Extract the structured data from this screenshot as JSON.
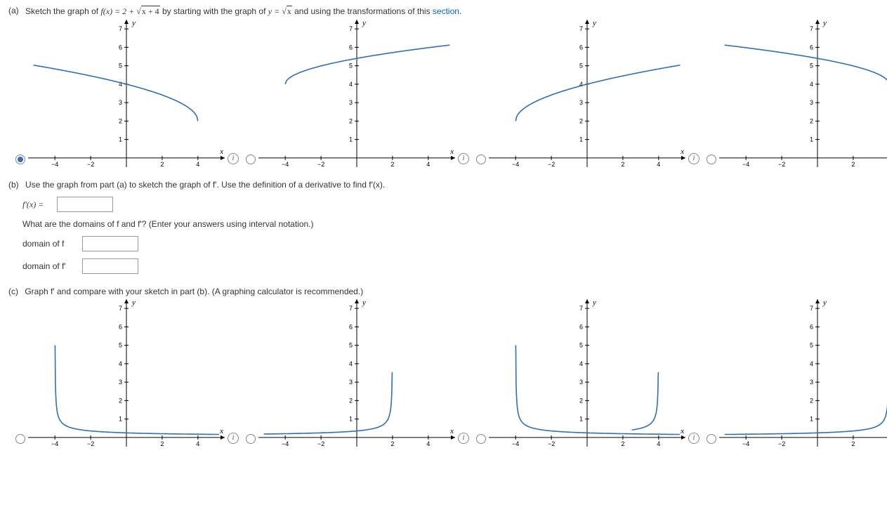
{
  "partA": {
    "label": "(a)",
    "prompt_before": "Sketch the graph of ",
    "func_lhs": "f(x) = 2 + ",
    "sqrt_arg": "x + 4",
    "prompt_mid": " by starting with the graph of ",
    "base_lhs": "y = ",
    "base_sqrt_arg": "x",
    "prompt_after": " and using the transformations of this ",
    "link_text": "section",
    "prompt_end": ".",
    "axis": {
      "xlabel": "x",
      "ylabel": "y",
      "xticks": [
        -4,
        -2,
        2,
        4
      ],
      "yticks": [
        1,
        2,
        3,
        4,
        5,
        6,
        7
      ],
      "xlim": [
        -5.5,
        5.5
      ],
      "ylim": [
        -0.5,
        7.5
      ],
      "color": "#000",
      "curve_color": "#2f6fb3",
      "curve_width": 1.6
    },
    "options": [
      {
        "selected": true,
        "curve": "neg_sqrt_left"
      },
      {
        "selected": false,
        "curve": "pos_sqrt_right"
      },
      {
        "selected": false,
        "curve": "pos_sqrt_left"
      },
      {
        "selected": false,
        "curve": "neg_sqrt_right"
      }
    ]
  },
  "partB": {
    "label": "(b)",
    "prompt": "Use the graph from part (a) to sketch the graph of f'. Use the definition of a derivative to find f'(x).",
    "fprime_label": "f'(x) =",
    "fprime_value": "",
    "domain_prompt": "What are the domains of f and f'? (Enter your answers using interval notation.)",
    "domain_f_label": "domain of f",
    "domain_f_value": "",
    "domain_fp_label": "domain of f'",
    "domain_fp_value": ""
  },
  "partC": {
    "label": "(c)",
    "prompt": "Graph f' and compare with your sketch in part (b). (A graphing calculator is recommended.)",
    "axis": {
      "xlabel": "x",
      "ylabel": "y",
      "xticks": [
        -4,
        -2,
        2,
        4
      ],
      "yticks": [
        1,
        2,
        3,
        4,
        5,
        6,
        7
      ],
      "xlim": [
        -5.5,
        5.5
      ],
      "ylim": [
        -0.5,
        7.5
      ],
      "color": "#000",
      "curve_color": "#2f6fb3",
      "curve_width": 1.6
    },
    "options": [
      {
        "selected": false,
        "curve": "deriv_left_up"
      },
      {
        "selected": false,
        "curve": "deriv_right_up_at2"
      },
      {
        "selected": false,
        "curve": "deriv_left_up_at0"
      },
      {
        "selected": false,
        "curve": "deriv_right_up"
      }
    ]
  }
}
